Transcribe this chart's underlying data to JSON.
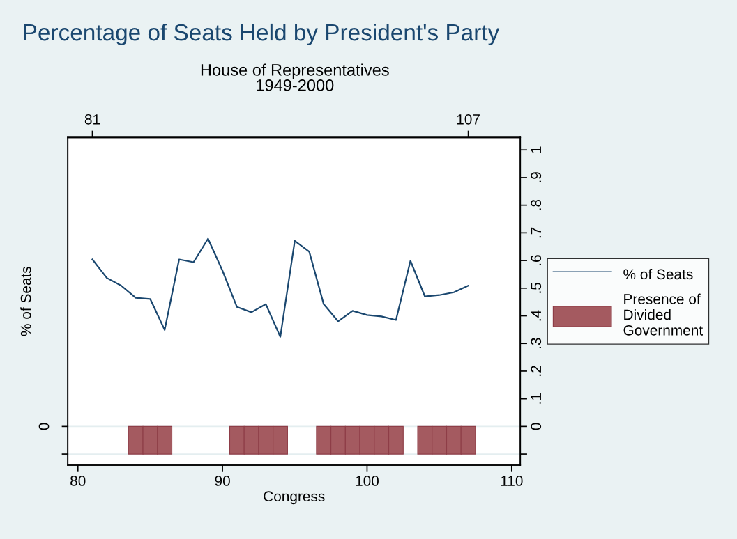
{
  "chart_data": {
    "type": "line",
    "title": "Percentage of Seats Held by President's Party",
    "subtitle": "House of Representatives\n1949-2000",
    "xlabel": "Congress",
    "ylabel": "% of Seats",
    "x": [
      81,
      82,
      83,
      84,
      85,
      86,
      87,
      88,
      89,
      90,
      91,
      92,
      93,
      94,
      95,
      96,
      97,
      98,
      99,
      100,
      101,
      102,
      103,
      104,
      105,
      106,
      107
    ],
    "series": [
      {
        "name": "% of Seats",
        "color": "#1a476f",
        "values": [
          0.604,
          0.537,
          0.509,
          0.465,
          0.461,
          0.349,
          0.604,
          0.594,
          0.679,
          0.563,
          0.432,
          0.413,
          0.442,
          0.324,
          0.671,
          0.632,
          0.442,
          0.38,
          0.418,
          0.403,
          0.398,
          0.385,
          0.599,
          0.47,
          0.475,
          0.485,
          0.509
        ]
      },
      {
        "name": "Presence of\nDivided\nGovernment",
        "type": "bar",
        "color": "#a45a60",
        "x": [
          84,
          85,
          86,
          91,
          92,
          93,
          94,
          97,
          98,
          99,
          100,
          101,
          102,
          104,
          105,
          106,
          107
        ],
        "values": [
          -0.1,
          -0.1,
          -0.1,
          -0.1,
          -0.1,
          -0.1,
          -0.1,
          -0.1,
          -0.1,
          -0.1,
          -0.1,
          -0.1,
          -0.1,
          -0.1,
          -0.1,
          -0.1,
          -0.1
        ]
      }
    ],
    "xlim": [
      79.3,
      110.6
    ],
    "xticks": [
      80,
      90,
      100,
      110
    ],
    "x2lim": [
      79.3,
      110.6
    ],
    "x2ticks": [
      81,
      107
    ],
    "ylim": [
      -0.14,
      1.045
    ],
    "yticks": [
      {
        "value": -0.1,
        "label": null
      },
      0,
      {
        "value": 0.1,
        "label": ".1"
      },
      {
        "value": 0.2,
        "label": ".2"
      },
      {
        "value": 0.3,
        "label": ".3"
      },
      {
        "value": 0.4,
        "label": ".4"
      },
      {
        "value": 0.5,
        "label": ".5"
      },
      {
        "value": 0.6,
        "label": ".6"
      },
      {
        "value": 0.7,
        "label": ".7"
      },
      {
        "value": 0.8,
        "label": ".8"
      },
      {
        "value": 0.9,
        "label": ".9"
      },
      1
    ],
    "ref_lines": [
      {
        "axis": "y",
        "value": 0,
        "color": "#e4eef0"
      },
      {
        "axis": "y",
        "value": -0.1,
        "color": "#e4eef0"
      }
    ],
    "annotations": [
      "0"
    ],
    "legend": "right",
    "line_style": "solid",
    "marker": "none"
  }
}
